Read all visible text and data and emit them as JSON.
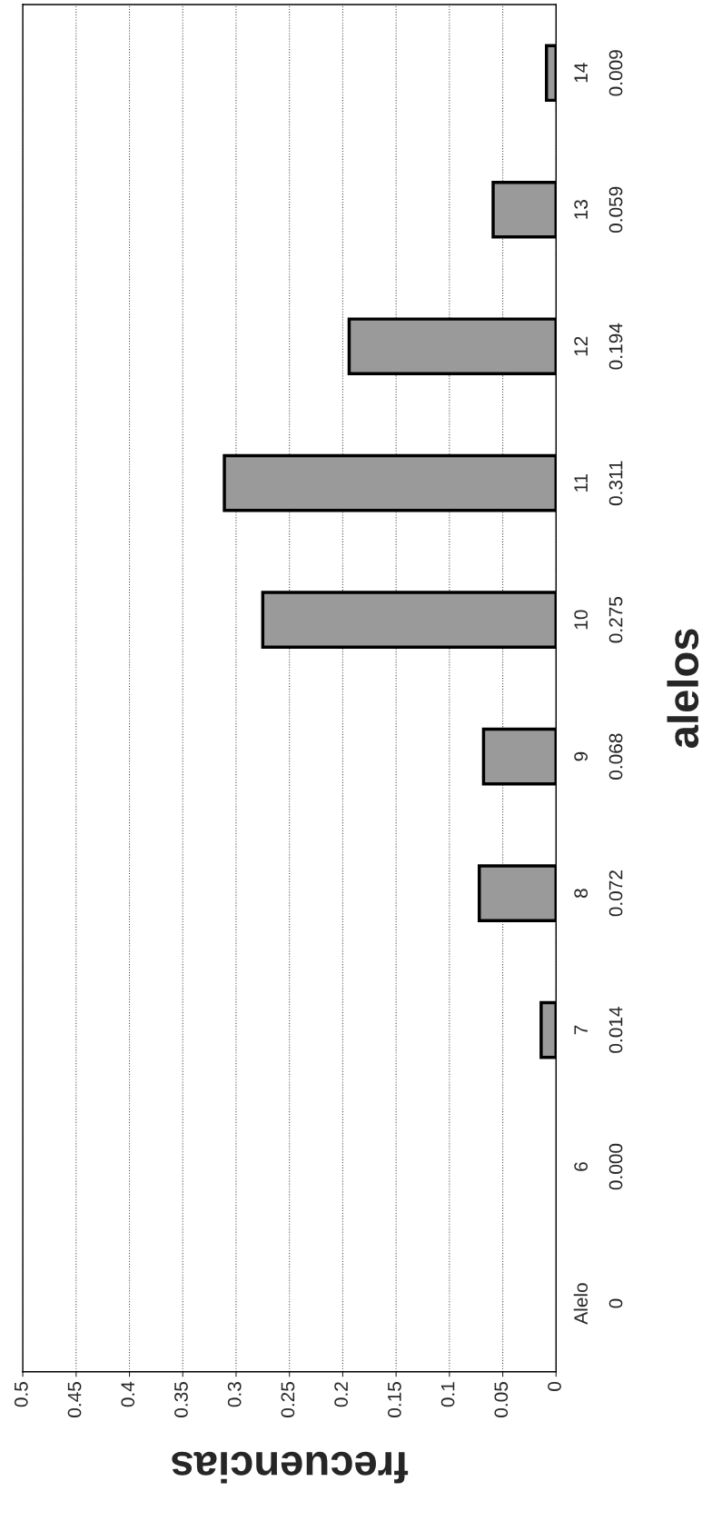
{
  "chart_data": {
    "type": "bar",
    "orientation": "horizontal",
    "xlabel": "frecuencias",
    "ylabel": "alelos",
    "categories": [
      "14",
      "13",
      "12",
      "11",
      "10",
      "9",
      "8",
      "7",
      "6",
      "Alelo"
    ],
    "values": [
      0.009,
      0.059,
      0.194,
      0.311,
      0.275,
      0.068,
      0.072,
      0.014,
      0.0,
      0
    ],
    "value_labels": [
      "0.009",
      "0.059",
      "0.194",
      "0.311",
      "0.275",
      "0.068",
      "0.072",
      "0.014",
      "0.000",
      "0"
    ],
    "color": "#9a9a9a",
    "xlim": [
      0.5,
      0
    ],
    "xticks": [
      0.5,
      0.45,
      0.4,
      0.35,
      0.3,
      0.25,
      0.2,
      0.15,
      0.1,
      0.05,
      0
    ],
    "grid": "x",
    "legend": false
  }
}
